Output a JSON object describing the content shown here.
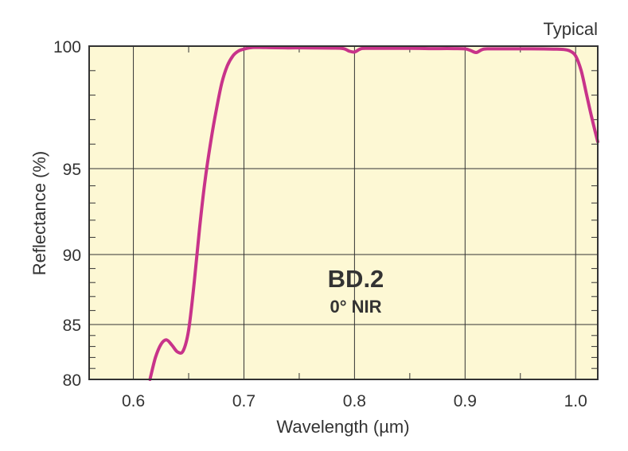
{
  "chart_data": {
    "type": "line",
    "corner_note": "Typical",
    "xlabel": "Wavelength (µm)",
    "ylabel": "Reflectance (%)",
    "xlim": [
      0.56,
      1.02
    ],
    "ylim": [
      80,
      100
    ],
    "y_scale": "reflectance-stretched",
    "grid": true,
    "x_ticks": [
      {
        "value": 0.6,
        "label": "0.6"
      },
      {
        "value": 0.7,
        "label": "0.7"
      },
      {
        "value": 0.8,
        "label": "0.8"
      },
      {
        "value": 0.9,
        "label": "0.9"
      },
      {
        "value": 1.0,
        "label": "1.0"
      }
    ],
    "y_ticks": [
      {
        "value": 80,
        "label": "80"
      },
      {
        "value": 85,
        "label": "85"
      },
      {
        "value": 90,
        "label": "90"
      },
      {
        "value": 95,
        "label": "95"
      },
      {
        "value": 100,
        "label": "100"
      }
    ],
    "annotation": {
      "title": "BD.2",
      "subtitle": "0° NIR"
    },
    "colors": {
      "plot_bg": "#fdf8d4",
      "grid": "#333333",
      "line": "#c8338a"
    },
    "series": [
      {
        "x": [
          0.615,
          0.62,
          0.625,
          0.63,
          0.635,
          0.64,
          0.645,
          0.65,
          0.655,
          0.66,
          0.665,
          0.67,
          0.675,
          0.68,
          0.685,
          0.69,
          0.695,
          0.7,
          0.705,
          0.71,
          0.72,
          0.74,
          0.76,
          0.78,
          0.79,
          0.795,
          0.8,
          0.805,
          0.81,
          0.83,
          0.85,
          0.87,
          0.89,
          0.9,
          0.905,
          0.91,
          0.915,
          0.92,
          0.94,
          0.96,
          0.98,
          0.99,
          0.995,
          1.0,
          1.005,
          1.01,
          1.015,
          1.02
        ],
        "y": [
          80.0,
          82.0,
          83.2,
          83.6,
          83.1,
          82.5,
          82.6,
          84.5,
          88.0,
          91.6,
          94.4,
          96.1,
          97.4,
          98.5,
          99.2,
          99.6,
          99.8,
          99.88,
          99.93,
          99.95,
          99.94,
          99.93,
          99.93,
          99.92,
          99.9,
          99.8,
          99.76,
          99.88,
          99.91,
          99.91,
          99.91,
          99.9,
          99.9,
          99.89,
          99.82,
          99.74,
          99.85,
          99.89,
          99.89,
          99.89,
          99.88,
          99.86,
          99.8,
          99.6,
          99.0,
          98.0,
          97.0,
          96.1
        ]
      }
    ]
  }
}
